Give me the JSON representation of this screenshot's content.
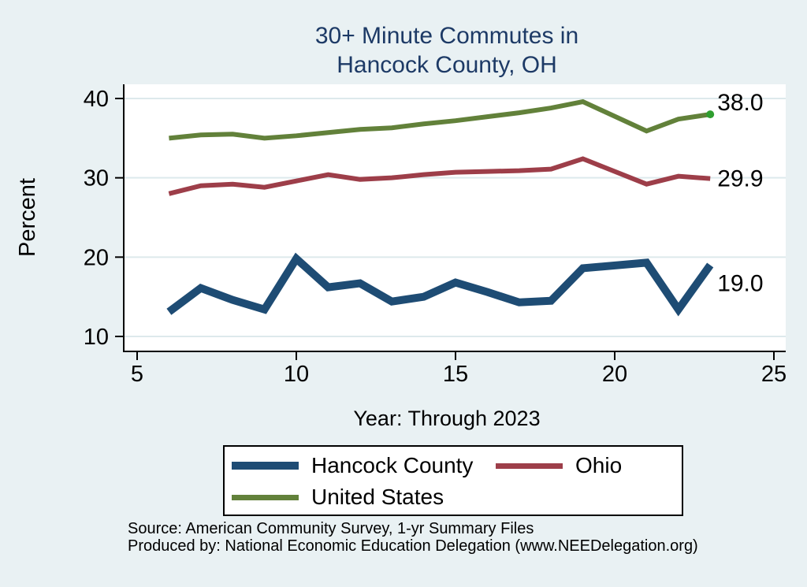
{
  "chart_data": {
    "type": "line",
    "title_line1": "30+ Minute Commutes in",
    "title_line2": "Hancock County, OH",
    "title_color": "#1d3a66",
    "background_color": "#e9f1f3",
    "plot_background_color": "#ffffff",
    "gridline_color": "#dde9ec",
    "ylabel": "Percent",
    "xlabel": "Year: Through 2023",
    "xlim": [
      5,
      25
    ],
    "ylim": [
      10,
      40
    ],
    "xticks": [
      5,
      10,
      15,
      20,
      25
    ],
    "yticks": [
      40,
      30,
      20,
      10
    ],
    "grid": "horizontal",
    "legend_position": "bottom",
    "x": [
      6,
      7,
      8,
      9,
      10,
      11,
      12,
      13,
      14,
      15,
      16,
      17,
      18,
      19,
      21,
      22,
      23
    ],
    "series": [
      {
        "name": "Hancock County",
        "color": "#1e4c74",
        "line_width": 10,
        "end_label": "19.0",
        "values": [
          13.1,
          16.1,
          14.6,
          13.4,
          19.8,
          16.2,
          16.7,
          14.4,
          15.0,
          16.8,
          15.6,
          14.3,
          14.5,
          18.6,
          19.3,
          13.4,
          19.0
        ]
      },
      {
        "name": "Ohio",
        "color": "#9d3e49",
        "line_width": 6,
        "end_label": "29.9",
        "values": [
          28.0,
          29.0,
          29.2,
          28.8,
          29.6,
          30.4,
          29.8,
          30.0,
          30.4,
          30.7,
          30.8,
          30.9,
          31.1,
          32.4,
          29.2,
          30.2,
          29.9
        ]
      },
      {
        "name": "United States",
        "color": "#62813a",
        "line_width": 6,
        "end_label": "38.0",
        "end_marker_color": "#2f9e2f",
        "values": [
          35.0,
          35.4,
          35.5,
          35.0,
          35.3,
          35.7,
          36.1,
          36.3,
          36.8,
          37.2,
          37.7,
          38.2,
          38.8,
          39.6,
          35.9,
          37.4,
          38.0
        ]
      }
    ],
    "source_line1": "Source: American Community Survey, 1-yr Summary Files",
    "source_line2": "Produced by: National Economic Education Delegation (www.NEEDelegation.org)"
  }
}
